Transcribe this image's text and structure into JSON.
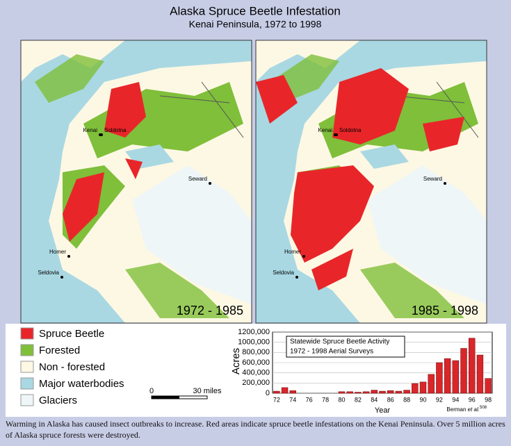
{
  "header": {
    "title": "Alaska Spruce Beetle Infestation",
    "subtitle": "Kenai Peninsula, 1972 to 1998"
  },
  "maps": [
    {
      "period": "1972 - 1985",
      "cities": [
        "Kenai",
        "Soldotna",
        "Seward",
        "Homer",
        "Seldovia"
      ]
    },
    {
      "period": "1985 - 1998",
      "cities": [
        "Kenai",
        "Soldotna",
        "Seward",
        "Homer",
        "Seldovia"
      ]
    }
  ],
  "legend": [
    {
      "label": "Spruce Beetle",
      "color": "#e8262a"
    },
    {
      "label": "Forested",
      "color": "#7fbf3a"
    },
    {
      "label": "Non - forested",
      "color": "#fdf8e4"
    },
    {
      "label": "Major waterbodies",
      "color": "#a9d8e3"
    },
    {
      "label": "Glaciers",
      "color": "#eef6f8"
    }
  ],
  "scale": {
    "start": "0",
    "end": "30 miles"
  },
  "chart_data": {
    "type": "bar",
    "title": "Statewide Spruce Beetle Activity",
    "subtitle": "1972 - 1998 Aerial Surveys",
    "x_label": "Year",
    "y_label": "Acres",
    "color": "#d9262a",
    "categories": [
      "72",
      null,
      "74",
      null,
      "76",
      null,
      "78",
      null,
      "80",
      null,
      "82",
      null,
      "84",
      null,
      "86",
      null,
      "88",
      null,
      "90",
      null,
      "92",
      null,
      "94",
      null,
      "96",
      null,
      "98"
    ],
    "values": [
      40000,
      110000,
      50000,
      0,
      0,
      0,
      0,
      0,
      30000,
      30000,
      20000,
      30000,
      60000,
      40000,
      50000,
      40000,
      60000,
      190000,
      220000,
      370000,
      600000,
      680000,
      640000,
      880000,
      1080000,
      750000,
      290000
    ],
    "ylim": [
      0,
      1200000
    ],
    "yticks": [
      {
        "value": 0,
        "label": "0"
      },
      {
        "value": 200000,
        "label": "200,000"
      },
      {
        "value": 400000,
        "label": "400,000"
      },
      {
        "value": 600000,
        "label": "600,000"
      },
      {
        "value": 800000,
        "label": "800,000"
      },
      {
        "value": 1000000,
        "label": "1000,000"
      },
      {
        "value": 1200000,
        "label": "1200,000"
      }
    ],
    "grid": true
  },
  "credit": {
    "author": "Berman ",
    "etal": "et al.",
    "ref": "508"
  },
  "caption": "Warming in Alaska has caused insect outbreaks to increase. Red areas indicate spruce beetle infestations on the Kenai Peninsula. Over 5 million acres of Alaska spruce forests were destroyed."
}
